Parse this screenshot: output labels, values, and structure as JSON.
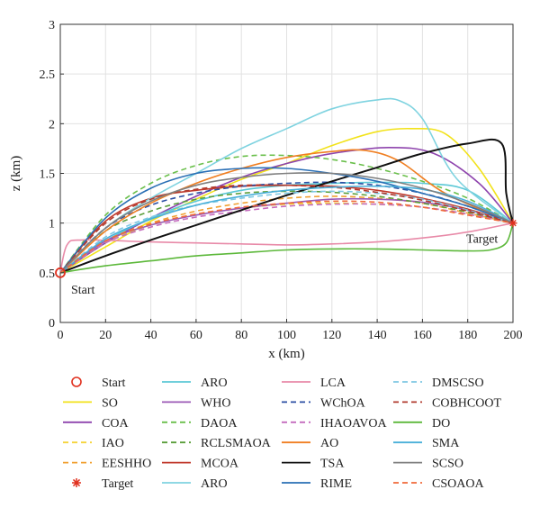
{
  "chart_data": {
    "type": "line",
    "xlabel": "x (km)",
    "ylabel": "z (km)",
    "xlim": [
      0,
      200
    ],
    "ylim": [
      0,
      3
    ],
    "x_ticks": [
      "0",
      "20",
      "40",
      "60",
      "80",
      "100",
      "120",
      "140",
      "160",
      "180",
      "200"
    ],
    "y_ticks": [
      "0",
      "0.5",
      "1",
      "1.5",
      "2",
      "2.5",
      "3"
    ],
    "grid": true,
    "legend_placement": "bottom",
    "annotations": {
      "start": {
        "label": "Start",
        "x": 0,
        "y": 0.5
      },
      "target": {
        "label": "Target",
        "x": 200,
        "y": 1.0
      }
    },
    "series": [
      {
        "name": "Start",
        "marker": "circle",
        "color": "#e0301e",
        "points": [
          [
            0,
            0.5
          ]
        ]
      },
      {
        "name": "SO",
        "color": "#f2e21a",
        "dash": "solid",
        "points": [
          [
            0,
            0.5
          ],
          [
            20,
            0.76
          ],
          [
            40,
            1.02
          ],
          [
            60,
            1.24
          ],
          [
            80,
            1.44
          ],
          [
            100,
            1.6
          ],
          [
            120,
            1.78
          ],
          [
            140,
            1.92
          ],
          [
            155,
            1.95
          ],
          [
            170,
            1.9
          ],
          [
            185,
            1.55
          ],
          [
            200,
            1.0
          ]
        ]
      },
      {
        "name": "COA",
        "color": "#8e44ad",
        "dash": "solid",
        "points": [
          [
            0,
            0.5
          ],
          [
            20,
            0.8
          ],
          [
            40,
            1.05
          ],
          [
            60,
            1.27
          ],
          [
            80,
            1.46
          ],
          [
            100,
            1.6
          ],
          [
            120,
            1.7
          ],
          [
            145,
            1.76
          ],
          [
            165,
            1.7
          ],
          [
            185,
            1.4
          ],
          [
            200,
            1.0
          ]
        ]
      },
      {
        "name": "IAO",
        "color": "#f5d43b",
        "dash": "dashed",
        "points": [
          [
            0,
            0.5
          ],
          [
            20,
            0.8
          ],
          [
            40,
            0.98
          ],
          [
            60,
            1.09
          ],
          [
            80,
            1.15
          ],
          [
            100,
            1.19
          ],
          [
            120,
            1.2
          ],
          [
            140,
            1.19
          ],
          [
            160,
            1.16
          ],
          [
            180,
            1.09
          ],
          [
            200,
            1.0
          ]
        ]
      },
      {
        "name": "EESHHO",
        "color": "#f0a030",
        "dash": "dashed",
        "points": [
          [
            0,
            0.5
          ],
          [
            20,
            0.82
          ],
          [
            40,
            1.0
          ],
          [
            60,
            1.12
          ],
          [
            80,
            1.2
          ],
          [
            100,
            1.25
          ],
          [
            120,
            1.27
          ],
          [
            140,
            1.25
          ],
          [
            160,
            1.2
          ],
          [
            180,
            1.1
          ],
          [
            200,
            1.0
          ]
        ]
      },
      {
        "name": "Target",
        "marker": "asterisk",
        "color": "#e0301e",
        "points": [
          [
            200,
            1.0
          ]
        ]
      },
      {
        "name": "ARO",
        "color": "#5bc8d6",
        "dash": "solid",
        "points": [
          [
            0,
            0.5
          ],
          [
            20,
            0.82
          ],
          [
            40,
            1.05
          ],
          [
            60,
            1.22
          ],
          [
            80,
            1.33
          ],
          [
            100,
            1.38
          ],
          [
            120,
            1.4
          ],
          [
            140,
            1.41
          ],
          [
            160,
            1.4
          ],
          [
            180,
            1.33
          ],
          [
            200,
            1.0
          ]
        ]
      },
      {
        "name": "WHO",
        "color": "#9b59b6",
        "dash": "solid",
        "points": [
          [
            0,
            0.5
          ],
          [
            20,
            0.82
          ],
          [
            40,
            0.98
          ],
          [
            60,
            1.08
          ],
          [
            80,
            1.15
          ],
          [
            100,
            1.2
          ],
          [
            120,
            1.24
          ],
          [
            140,
            1.24
          ],
          [
            160,
            1.21
          ],
          [
            180,
            1.13
          ],
          [
            200,
            1.0
          ]
        ]
      },
      {
        "name": "DAOA",
        "color": "#6abf4b",
        "dash": "dashed",
        "points": [
          [
            0,
            0.5
          ],
          [
            20,
            1.08
          ],
          [
            40,
            1.4
          ],
          [
            60,
            1.58
          ],
          [
            80,
            1.67
          ],
          [
            100,
            1.68
          ],
          [
            120,
            1.64
          ],
          [
            140,
            1.55
          ],
          [
            160,
            1.42
          ],
          [
            180,
            1.25
          ],
          [
            200,
            1.0
          ]
        ]
      },
      {
        "name": "RCLSMAOA",
        "color": "#5a9e3a",
        "dash": "dashed",
        "points": [
          [
            0,
            0.5
          ],
          [
            20,
            0.92
          ],
          [
            40,
            1.12
          ],
          [
            60,
            1.24
          ],
          [
            80,
            1.3
          ],
          [
            100,
            1.32
          ],
          [
            120,
            1.31
          ],
          [
            140,
            1.27
          ],
          [
            160,
            1.2
          ],
          [
            180,
            1.11
          ],
          [
            200,
            1.0
          ]
        ]
      },
      {
        "name": "MCOA",
        "color": "#c0392b",
        "dash": "solid",
        "points": [
          [
            0,
            0.5
          ],
          [
            20,
            1.02
          ],
          [
            40,
            1.25
          ],
          [
            60,
            1.33
          ],
          [
            80,
            1.37
          ],
          [
            100,
            1.38
          ],
          [
            120,
            1.37
          ],
          [
            140,
            1.33
          ],
          [
            160,
            1.25
          ],
          [
            180,
            1.14
          ],
          [
            200,
            1.0
          ]
        ]
      },
      {
        "name": "ARO",
        "color": "#7fd3e0",
        "dash": "solid",
        "points": [
          [
            0,
            0.5
          ],
          [
            20,
            0.95
          ],
          [
            40,
            1.25
          ],
          [
            60,
            1.5
          ],
          [
            80,
            1.75
          ],
          [
            100,
            1.95
          ],
          [
            120,
            2.15
          ],
          [
            140,
            2.24
          ],
          [
            150,
            2.23
          ],
          [
            160,
            2.05
          ],
          [
            175,
            1.45
          ],
          [
            200,
            1.0
          ]
        ]
      },
      {
        "name": "LCA",
        "color": "#e88aa8",
        "dash": "solid",
        "points": [
          [
            0,
            0.5
          ],
          [
            3,
            0.78
          ],
          [
            10,
            0.83
          ],
          [
            40,
            0.81
          ],
          [
            60,
            0.8
          ],
          [
            80,
            0.79
          ],
          [
            100,
            0.78
          ],
          [
            120,
            0.79
          ],
          [
            140,
            0.81
          ],
          [
            160,
            0.85
          ],
          [
            180,
            0.91
          ],
          [
            200,
            1.0
          ]
        ]
      },
      {
        "name": "WChOA",
        "color": "#2c4fa3",
        "dash": "dashed",
        "points": [
          [
            0,
            0.5
          ],
          [
            20,
            0.95
          ],
          [
            40,
            1.18
          ],
          [
            60,
            1.3
          ],
          [
            80,
            1.37
          ],
          [
            100,
            1.4
          ],
          [
            120,
            1.41
          ],
          [
            140,
            1.38
          ],
          [
            160,
            1.3
          ],
          [
            180,
            1.17
          ],
          [
            200,
            1.0
          ]
        ]
      },
      {
        "name": "IHAOAVOA",
        "color": "#c46bbd",
        "dash": "dashed",
        "points": [
          [
            0,
            0.5
          ],
          [
            20,
            0.8
          ],
          [
            40,
            0.96
          ],
          [
            60,
            1.06
          ],
          [
            80,
            1.12
          ],
          [
            100,
            1.17
          ],
          [
            120,
            1.19
          ],
          [
            140,
            1.19
          ],
          [
            160,
            1.16
          ],
          [
            180,
            1.09
          ],
          [
            200,
            1.0
          ]
        ]
      },
      {
        "name": "AO",
        "color": "#f07f22",
        "dash": "solid",
        "points": [
          [
            0,
            0.5
          ],
          [
            20,
            0.92
          ],
          [
            40,
            1.2
          ],
          [
            60,
            1.4
          ],
          [
            80,
            1.55
          ],
          [
            100,
            1.66
          ],
          [
            120,
            1.72
          ],
          [
            135,
            1.73
          ],
          [
            150,
            1.62
          ],
          [
            170,
            1.3
          ],
          [
            200,
            1.0
          ]
        ]
      },
      {
        "name": "TSA",
        "color": "#111111",
        "dash": "solid",
        "points": [
          [
            0,
            0.5
          ],
          [
            20,
            0.67
          ],
          [
            40,
            0.83
          ],
          [
            60,
            0.98
          ],
          [
            80,
            1.13
          ],
          [
            100,
            1.28
          ],
          [
            120,
            1.42
          ],
          [
            140,
            1.56
          ],
          [
            160,
            1.7
          ],
          [
            180,
            1.8
          ],
          [
            195,
            1.8
          ],
          [
            197,
            1.3
          ],
          [
            200,
            1.0
          ]
        ]
      },
      {
        "name": "RIME",
        "color": "#2a6fb5",
        "dash": "solid",
        "points": [
          [
            0,
            0.5
          ],
          [
            20,
            1.05
          ],
          [
            40,
            1.35
          ],
          [
            60,
            1.5
          ],
          [
            80,
            1.55
          ],
          [
            100,
            1.55
          ],
          [
            120,
            1.5
          ],
          [
            140,
            1.42
          ],
          [
            160,
            1.3
          ],
          [
            180,
            1.17
          ],
          [
            200,
            1.0
          ]
        ]
      },
      {
        "name": "DMSCSO",
        "color": "#7ec8e3",
        "dash": "dashed",
        "points": [
          [
            0,
            0.5
          ],
          [
            20,
            0.86
          ],
          [
            40,
            1.06
          ],
          [
            60,
            1.18
          ],
          [
            80,
            1.25
          ],
          [
            100,
            1.3
          ],
          [
            120,
            1.32
          ],
          [
            140,
            1.3
          ],
          [
            160,
            1.24
          ],
          [
            180,
            1.13
          ],
          [
            200,
            1.0
          ]
        ]
      },
      {
        "name": "COBHCOOT",
        "color": "#b03a2e",
        "dash": "dashed",
        "points": [
          [
            0,
            0.5
          ],
          [
            20,
            1.0
          ],
          [
            40,
            1.24
          ],
          [
            60,
            1.34
          ],
          [
            80,
            1.38
          ],
          [
            100,
            1.38
          ],
          [
            120,
            1.36
          ],
          [
            140,
            1.31
          ],
          [
            160,
            1.23
          ],
          [
            180,
            1.12
          ],
          [
            200,
            1.0
          ]
        ]
      },
      {
        "name": "DO",
        "color": "#5cb83a",
        "dash": "solid",
        "points": [
          [
            0,
            0.5
          ],
          [
            20,
            0.57
          ],
          [
            40,
            0.62
          ],
          [
            60,
            0.67
          ],
          [
            80,
            0.7
          ],
          [
            100,
            0.73
          ],
          [
            120,
            0.74
          ],
          [
            140,
            0.74
          ],
          [
            160,
            0.73
          ],
          [
            180,
            0.72
          ],
          [
            190,
            0.73
          ],
          [
            197,
            0.8
          ],
          [
            200,
            1.0
          ]
        ]
      },
      {
        "name": "SMA",
        "color": "#4ab0d9",
        "dash": "solid",
        "points": [
          [
            0,
            0.5
          ],
          [
            20,
            0.84
          ],
          [
            40,
            1.04
          ],
          [
            60,
            1.18
          ],
          [
            80,
            1.27
          ],
          [
            100,
            1.33
          ],
          [
            120,
            1.36
          ],
          [
            140,
            1.37
          ],
          [
            160,
            1.34
          ],
          [
            180,
            1.22
          ],
          [
            200,
            1.0
          ]
        ]
      },
      {
        "name": "SCSO",
        "color": "#808080",
        "dash": "solid",
        "points": [
          [
            0,
            0.5
          ],
          [
            20,
            0.95
          ],
          [
            40,
            1.22
          ],
          [
            60,
            1.38
          ],
          [
            80,
            1.46
          ],
          [
            100,
            1.5
          ],
          [
            120,
            1.5
          ],
          [
            140,
            1.45
          ],
          [
            160,
            1.35
          ],
          [
            180,
            1.2
          ],
          [
            200,
            1.0
          ]
        ]
      },
      {
        "name": "CSOAOA",
        "color": "#f06a3a",
        "dash": "dashed",
        "points": [
          [
            0,
            0.5
          ],
          [
            20,
            0.82
          ],
          [
            40,
            0.99
          ],
          [
            60,
            1.09
          ],
          [
            80,
            1.16
          ],
          [
            100,
            1.2
          ],
          [
            120,
            1.22
          ],
          [
            140,
            1.21
          ],
          [
            160,
            1.16
          ],
          [
            180,
            1.08
          ],
          [
            200,
            1.0
          ]
        ]
      }
    ],
    "legend_columns": [
      [
        "Start",
        "SO",
        "COA",
        "IAO",
        "EESHHO",
        "Target"
      ],
      [
        "ARO",
        "WHO",
        "DAOA",
        "RCLSMAOA",
        "MCOA",
        "ARO"
      ],
      [
        "LCA",
        "WChOA",
        "IHAOAVOA",
        "AO",
        "TSA",
        "RIME"
      ],
      [
        "DMSCSO",
        "COBHCOOT",
        "DO",
        "SMA",
        "SCSO",
        "CSOAOA"
      ]
    ]
  }
}
